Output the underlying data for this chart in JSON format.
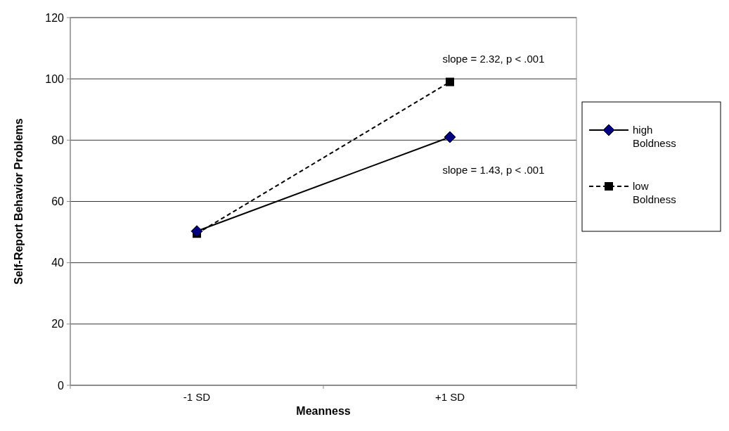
{
  "chart_data": {
    "type": "line",
    "xlabel": "Meanness",
    "ylabel": "Self-Report Behavior Problems",
    "categories": [
      "-1 SD",
      "+1 SD"
    ],
    "ylim": [
      0,
      120
    ],
    "yticks": [
      0,
      20,
      40,
      60,
      80,
      100,
      120
    ],
    "grid": "y",
    "legend": "right",
    "series": [
      {
        "name": "high Boldness",
        "color": "#000000",
        "values": [
          50.3,
          81
        ],
        "marker": "diamond",
        "line_style": "solid"
      },
      {
        "name": "low Boldness",
        "color": "#000000",
        "values": [
          49.5,
          99
        ],
        "marker": "square",
        "line_style": "dashed"
      }
    ],
    "annotations": [
      {
        "text": "slope = 2.32, p < .001",
        "x": "+1 SD",
        "y": 99
      },
      {
        "text": "slope = 1.43, p < .001",
        "x": "+1 SD",
        "y": 81
      }
    ]
  }
}
